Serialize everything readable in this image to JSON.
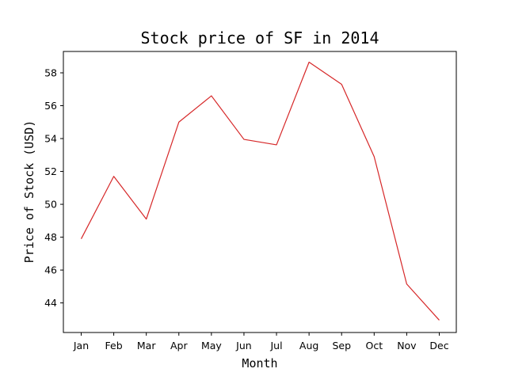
{
  "chart_data": {
    "type": "line",
    "title": "Stock price of SF in 2014",
    "xlabel": "Month",
    "ylabel": "Price of Stock (USD)",
    "categories": [
      "Jan",
      "Feb",
      "Mar",
      "Apr",
      "May",
      "Jun",
      "Jul",
      "Aug",
      "Sep",
      "Oct",
      "Nov",
      "Dec"
    ],
    "series": [
      {
        "values": [
          47.9,
          51.7,
          49.1,
          55.0,
          56.6,
          53.95,
          53.62,
          58.65,
          57.3,
          52.9,
          45.15,
          42.95
        ],
        "color": "#d62728"
      }
    ],
    "ylim": [
      42.2,
      59.3
    ],
    "yticks": [
      44,
      46,
      48,
      50,
      52,
      54,
      56,
      58
    ],
    "grid": false,
    "legend": false
  }
}
